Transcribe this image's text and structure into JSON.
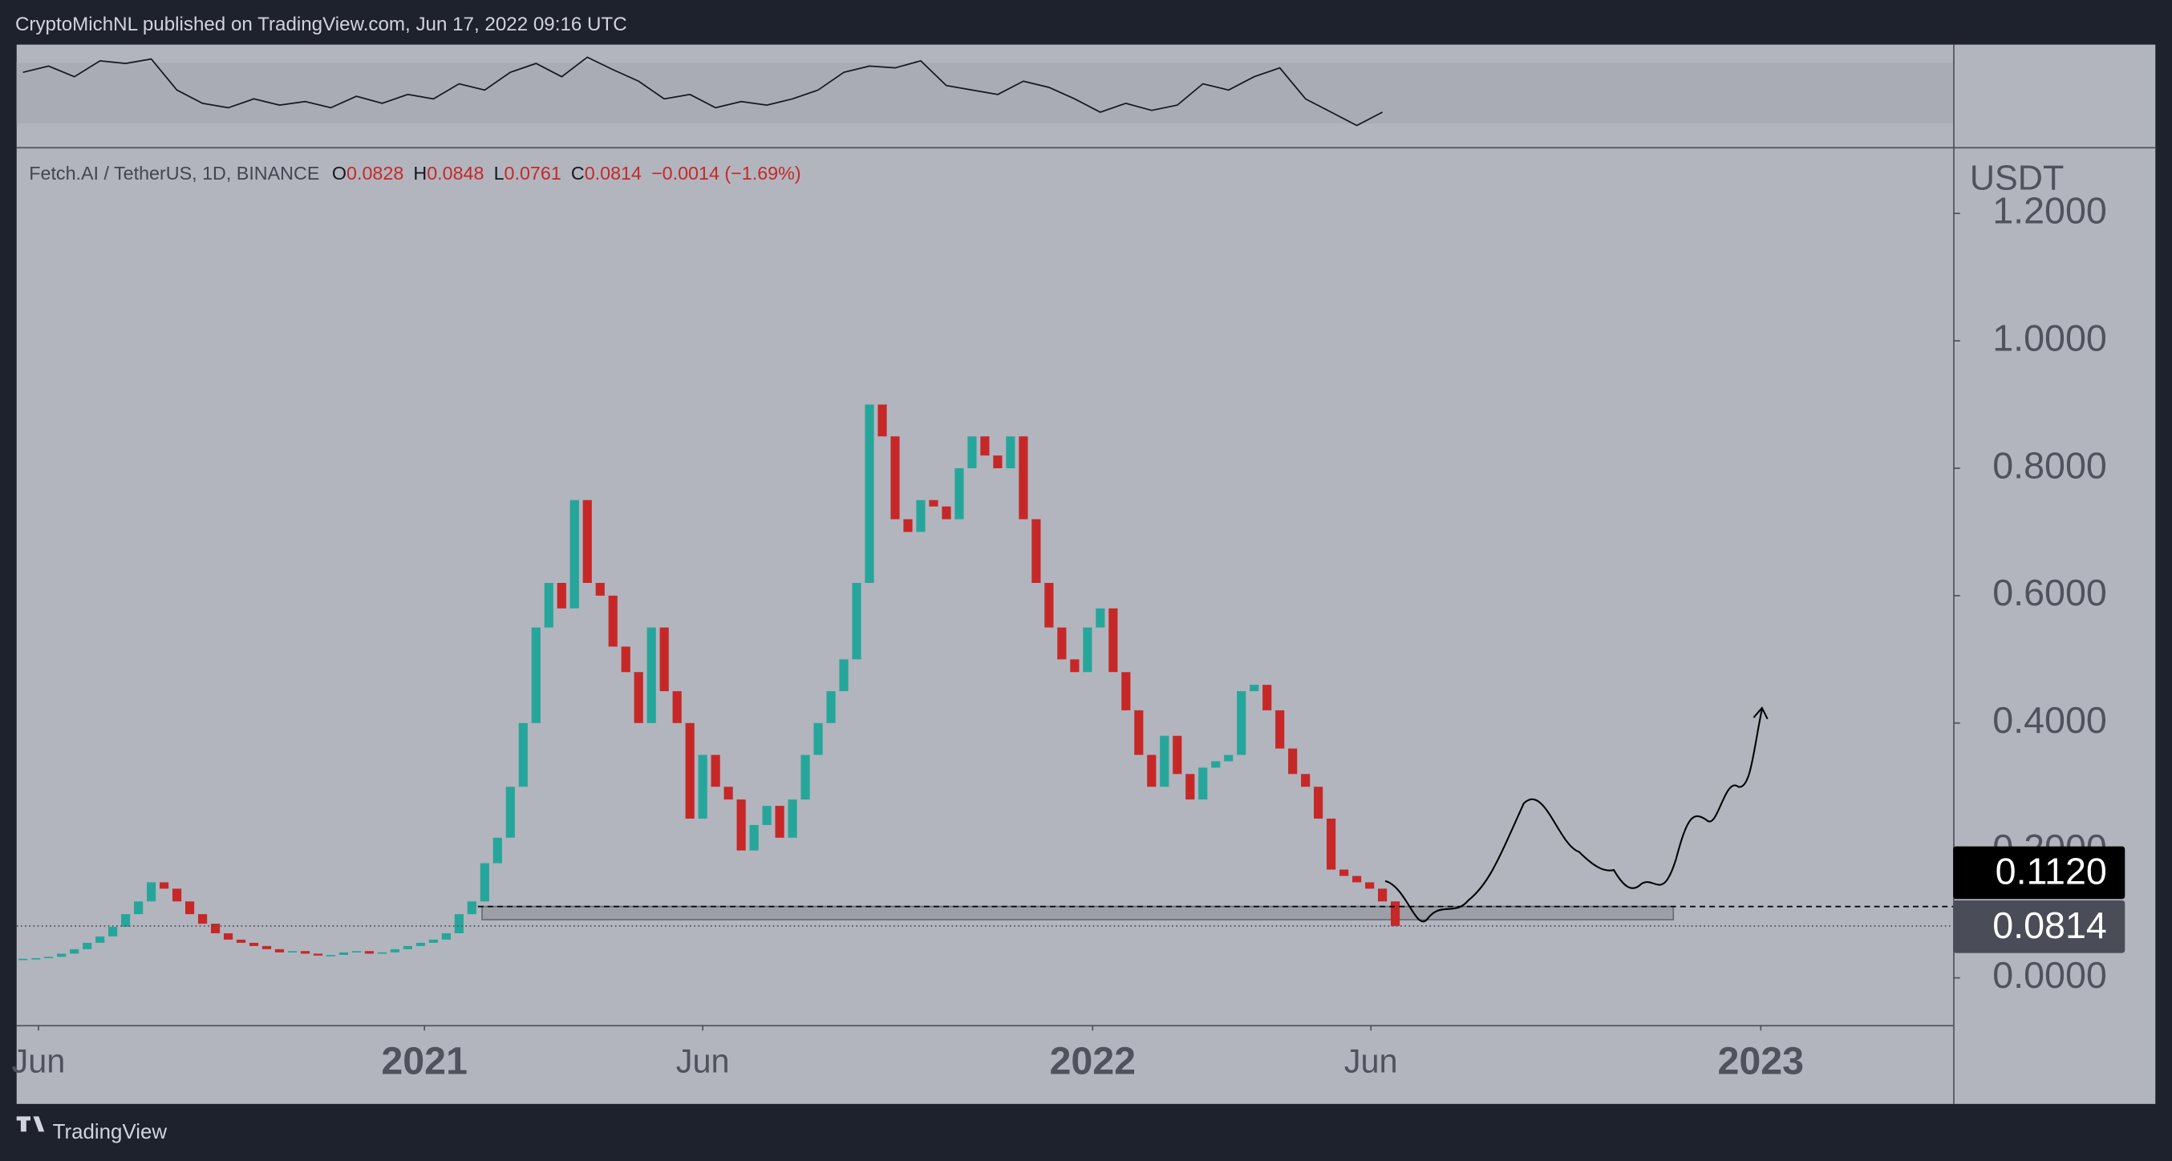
{
  "header": {
    "text": "CryptoMichNL published on TradingView.com, Jun 17, 2022 09:16 UTC"
  },
  "legend": {
    "symbol": "Fetch.AI / TetherUS, 1D, BINANCE",
    "items": [
      {
        "label": "O",
        "value": "0.0828"
      },
      {
        "label": "H",
        "value": "0.0848"
      },
      {
        "label": "L",
        "value": "0.0761"
      },
      {
        "label": "C",
        "value": "0.0814"
      }
    ],
    "change": "−0.0014 (−1.69%)"
  },
  "chart_data": {
    "type": "candlestick",
    "currency": "USDT",
    "up_color": "#26a69a",
    "down_color": "#c62828",
    "values": [
      0.03,
      0.031,
      0.033,
      0.038,
      0.045,
      0.055,
      0.065,
      0.08,
      0.1,
      0.12,
      0.15,
      0.14,
      0.12,
      0.1,
      0.085,
      0.07,
      0.06,
      0.055,
      0.05,
      0.045,
      0.04,
      0.042,
      0.038,
      0.035,
      0.036,
      0.04,
      0.042,
      0.038,
      0.04,
      0.045,
      0.05,
      0.055,
      0.06,
      0.07,
      0.1,
      0.12,
      0.18,
      0.22,
      0.3,
      0.4,
      0.55,
      0.62,
      0.58,
      0.75,
      0.62,
      0.6,
      0.52,
      0.48,
      0.4,
      0.55,
      0.45,
      0.4,
      0.25,
      0.35,
      0.3,
      0.28,
      0.2,
      0.24,
      0.27,
      0.22,
      0.28,
      0.35,
      0.4,
      0.45,
      0.5,
      0.62,
      0.9,
      0.85,
      0.72,
      0.7,
      0.75,
      0.74,
      0.72,
      0.8,
      0.85,
      0.82,
      0.8,
      0.85,
      0.72,
      0.62,
      0.55,
      0.5,
      0.48,
      0.55,
      0.58,
      0.48,
      0.42,
      0.35,
      0.3,
      0.38,
      0.32,
      0.28,
      0.33,
      0.34,
      0.35,
      0.45,
      0.46,
      0.42,
      0.36,
      0.32,
      0.3,
      0.25,
      0.17,
      0.16,
      0.15,
      0.14,
      0.12,
      0.0814
    ],
    "xlim": [
      -0.5,
      150.5
    ],
    "xticks": [
      {
        "value": 1.2,
        "label": "Jun"
      },
      {
        "value": 31.3,
        "label": "2021"
      },
      {
        "value": 53.0,
        "label": "Jun"
      },
      {
        "value": 83.4,
        "label": "2022"
      },
      {
        "value": 105.1,
        "label": "Jun"
      },
      {
        "value": 135.5,
        "label": "2023"
      }
    ],
    "ylim": [
      -0.074,
      1.302
    ],
    "yticks": [
      {
        "value": 0,
        "label": "0.0000"
      },
      {
        "value": 0.2,
        "label": "0.2000"
      },
      {
        "value": 0.4,
        "label": "0.4000"
      },
      {
        "value": 0.6,
        "label": "0.6000"
      },
      {
        "value": 0.8,
        "label": "0.8000"
      },
      {
        "value": 1.0,
        "label": "1.0000"
      },
      {
        "value": 1.2,
        "label": "1.2000"
      }
    ],
    "levels": [
      {
        "value": 0.112,
        "label": "0.1120",
        "color": "#000000"
      },
      {
        "value": 0.0814,
        "label": "0.0814",
        "color": "#4a4d57"
      }
    ],
    "zone": [
      0.0913,
      0.112
    ],
    "indicator": {
      "ylim": [
        0,
        1
      ],
      "values": [
        0.75,
        0.82,
        0.7,
        0.88,
        0.85,
        0.9,
        0.55,
        0.4,
        0.35,
        0.45,
        0.38,
        0.42,
        0.35,
        0.48,
        0.4,
        0.5,
        0.45,
        0.62,
        0.55,
        0.75,
        0.85,
        0.7,
        0.92,
        0.78,
        0.65,
        0.45,
        0.5,
        0.35,
        0.42,
        0.38,
        0.45,
        0.55,
        0.75,
        0.82,
        0.8,
        0.88,
        0.6,
        0.55,
        0.5,
        0.65,
        0.58,
        0.45,
        0.3,
        0.4,
        0.32,
        0.38,
        0.62,
        0.55,
        0.7,
        0.8,
        0.45,
        0.3,
        0.15,
        0.3
      ]
    }
  },
  "footer": {
    "brand": "TradingView"
  }
}
